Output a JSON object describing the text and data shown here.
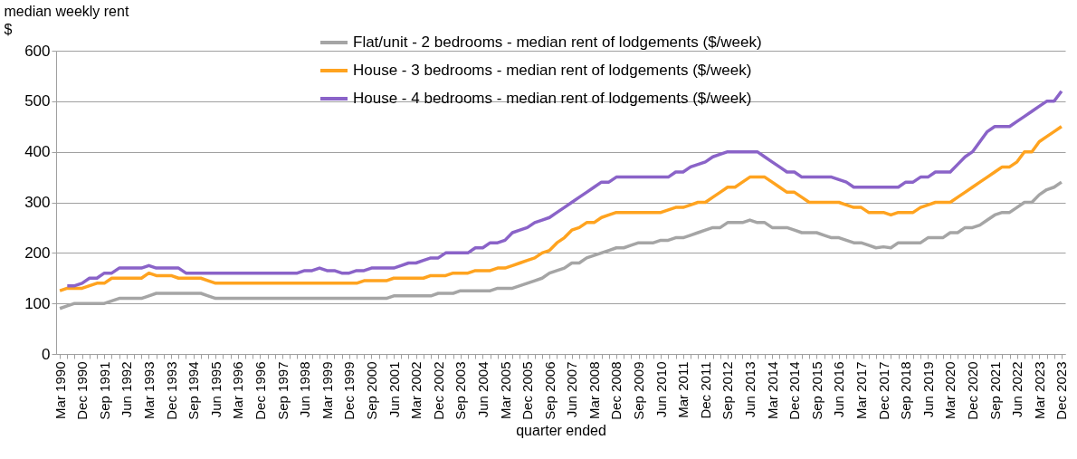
{
  "chart_data": {
    "type": "line",
    "ylabel": "median weekly rent $",
    "xlabel": "quarter ended",
    "categories": [
      "Mar 1990",
      null,
      null,
      "Dec 1990",
      null,
      null,
      "Sep 1991",
      null,
      null,
      "Jun 1992",
      null,
      null,
      "Mar 1993",
      null,
      null,
      "Dec 1993",
      null,
      null,
      "Sep 1994",
      null,
      null,
      "Jun 1995",
      null,
      null,
      "Mar 1996",
      null,
      null,
      "Dec 1996",
      null,
      null,
      "Sep 1997",
      null,
      null,
      "Jun 1998",
      null,
      null,
      "Mar 1999",
      null,
      null,
      "Dec 1999",
      null,
      null,
      "Sep 2000",
      null,
      null,
      "Jun 2001",
      null,
      null,
      "Mar 2002",
      null,
      null,
      "Dec 2002",
      null,
      null,
      "Sep 2003",
      null,
      null,
      "Jun 2004",
      null,
      null,
      "Mar 2005",
      null,
      null,
      "Dec 2005",
      null,
      null,
      "Sep 2006",
      null,
      null,
      "Jun 2007",
      null,
      null,
      "Mar 2008",
      null,
      null,
      "Dec 2008",
      null,
      null,
      "Sep 2009",
      null,
      null,
      "Jun 2010",
      null,
      null,
      "Mar 2011",
      null,
      null,
      "Dec 2011",
      null,
      null,
      "Sep 2012",
      null,
      null,
      "Jun 2013",
      null,
      null,
      "Mar 2014",
      null,
      null,
      "Dec 2014",
      null,
      null,
      "Sep 2015",
      null,
      null,
      "Jun 2016",
      null,
      null,
      "Mar 2017",
      null,
      null,
      "Dec 2017",
      null,
      null,
      "Sep 2018",
      null,
      null,
      "Jun 2019",
      null,
      null,
      "Mar 2020",
      null,
      null,
      "Dec 2020",
      null,
      null,
      "Sep 2021",
      null,
      null,
      "Jun 2022",
      null,
      null,
      "Mar 2023",
      null,
      null,
      "Dec 2023"
    ],
    "series": [
      {
        "name": "Flat/unit - 2 bedrooms - median rent of lodgements ($/week)",
        "color": "#a5a5a5",
        "values": [
          90,
          95,
          100,
          100,
          100,
          100,
          100,
          105,
          110,
          110,
          110,
          110,
          115,
          120,
          120,
          120,
          120,
          120,
          120,
          120,
          115,
          110,
          110,
          110,
          110,
          110,
          110,
          110,
          110,
          110,
          110,
          110,
          110,
          110,
          110,
          110,
          110,
          110,
          110,
          110,
          110,
          110,
          110,
          110,
          110,
          115,
          115,
          115,
          115,
          115,
          115,
          120,
          120,
          120,
          125,
          125,
          125,
          125,
          125,
          130,
          130,
          130,
          135,
          140,
          145,
          150,
          160,
          165,
          170,
          180,
          180,
          190,
          195,
          200,
          205,
          210,
          210,
          215,
          220,
          220,
          220,
          225,
          225,
          230,
          230,
          235,
          240,
          245,
          250,
          250,
          260,
          260,
          260,
          265,
          260,
          260,
          250,
          250,
          250,
          245,
          240,
          240,
          240,
          235,
          230,
          230,
          225,
          220,
          220,
          215,
          210,
          212,
          210,
          220,
          220,
          220,
          220,
          230,
          230,
          230,
          240,
          240,
          250,
          250,
          255,
          265,
          275,
          280,
          280,
          290,
          300,
          300,
          315,
          325,
          330,
          340
        ]
      },
      {
        "name": "House - 3 bedrooms - median rent of lodgements ($/week)",
        "color": "#ffa31f",
        "values": [
          125,
          130,
          130,
          130,
          135,
          140,
          140,
          150,
          150,
          150,
          150,
          150,
          160,
          155,
          155,
          155,
          150,
          150,
          150,
          150,
          145,
          140,
          140,
          140,
          140,
          140,
          140,
          140,
          140,
          140,
          140,
          140,
          140,
          140,
          140,
          140,
          140,
          140,
          140,
          140,
          140,
          145,
          145,
          145,
          145,
          150,
          150,
          150,
          150,
          150,
          155,
          155,
          155,
          160,
          160,
          160,
          165,
          165,
          165,
          170,
          170,
          175,
          180,
          185,
          190,
          200,
          205,
          220,
          230,
          245,
          250,
          260,
          260,
          270,
          275,
          280,
          280,
          280,
          280,
          280,
          280,
          280,
          285,
          290,
          290,
          295,
          300,
          300,
          310,
          320,
          330,
          330,
          340,
          350,
          350,
          350,
          340,
          330,
          320,
          320,
          310,
          300,
          300,
          300,
          300,
          300,
          295,
          290,
          290,
          280,
          280,
          280,
          275,
          280,
          280,
          280,
          290,
          295,
          300,
          300,
          300,
          310,
          320,
          330,
          340,
          350,
          360,
          370,
          370,
          380,
          400,
          400,
          420,
          430,
          440,
          450
        ]
      },
      {
        "name": "House - 4 bedrooms - median rent of lodgements ($/week)",
        "color": "#8a63c8",
        "values": [
          null,
          135,
          135,
          140,
          150,
          150,
          160,
          160,
          170,
          170,
          170,
          170,
          175,
          170,
          170,
          170,
          170,
          160,
          160,
          160,
          160,
          160,
          160,
          160,
          160,
          160,
          160,
          160,
          160,
          160,
          160,
          160,
          160,
          165,
          165,
          170,
          165,
          165,
          160,
          160,
          165,
          165,
          170,
          170,
          170,
          170,
          175,
          180,
          180,
          185,
          190,
          190,
          200,
          200,
          200,
          200,
          210,
          210,
          220,
          220,
          225,
          240,
          245,
          250,
          260,
          265,
          270,
          280,
          290,
          300,
          310,
          320,
          330,
          340,
          340,
          350,
          350,
          350,
          350,
          350,
          350,
          350,
          350,
          360,
          360,
          370,
          375,
          380,
          390,
          395,
          400,
          400,
          400,
          400,
          400,
          390,
          380,
          370,
          360,
          360,
          350,
          350,
          350,
          350,
          350,
          345,
          340,
          330,
          330,
          330,
          330,
          330,
          330,
          330,
          340,
          340,
          350,
          350,
          360,
          360,
          360,
          375,
          390,
          400,
          420,
          440,
          450,
          450,
          450,
          460,
          470,
          480,
          490,
          500,
          500,
          520
        ]
      }
    ],
    "ylim": [
      0,
      600
    ],
    "yticks": [
      0,
      100,
      200,
      300,
      400,
      500,
      600
    ],
    "grid": "y",
    "legend": "top"
  }
}
